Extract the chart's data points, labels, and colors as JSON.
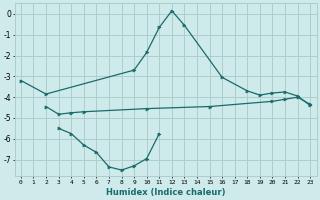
{
  "line1_x": [
    0,
    2,
    9,
    10,
    11,
    12,
    13,
    16,
    18,
    19,
    20,
    21,
    22,
    23
  ],
  "line1_y": [
    -3.2,
    -3.85,
    -2.7,
    -1.85,
    -0.65,
    0.15,
    -0.55,
    -3.05,
    -3.7,
    -3.9,
    -3.8,
    -3.75,
    -3.95,
    -4.4
  ],
  "line2_x": [
    2,
    3,
    4,
    5,
    10,
    15,
    20,
    21,
    22,
    23
  ],
  "line2_y": [
    -4.45,
    -4.82,
    -4.75,
    -4.7,
    -4.55,
    -4.45,
    -4.2,
    -4.1,
    -4.0,
    -4.35
  ],
  "line3_x": [
    3,
    4,
    5,
    6,
    7,
    8,
    9,
    10,
    11
  ],
  "line3_y": [
    -5.5,
    -5.75,
    -6.3,
    -6.65,
    -7.35,
    -7.5,
    -7.3,
    -6.95,
    -5.75
  ],
  "line_color": "#1a6b6b",
  "bg_color": "#ceeaea",
  "grid_color": "#aecece",
  "xlabel": "Humidex (Indice chaleur)",
  "xlim": [
    -0.5,
    23.5
  ],
  "ylim": [
    -7.8,
    0.5
  ],
  "yticks": [
    0,
    -1,
    -2,
    -3,
    -4,
    -5,
    -6,
    -7
  ],
  "xticks": [
    0,
    1,
    2,
    3,
    4,
    5,
    6,
    7,
    8,
    9,
    10,
    11,
    12,
    13,
    14,
    15,
    16,
    17,
    18,
    19,
    20,
    21,
    22,
    23
  ]
}
